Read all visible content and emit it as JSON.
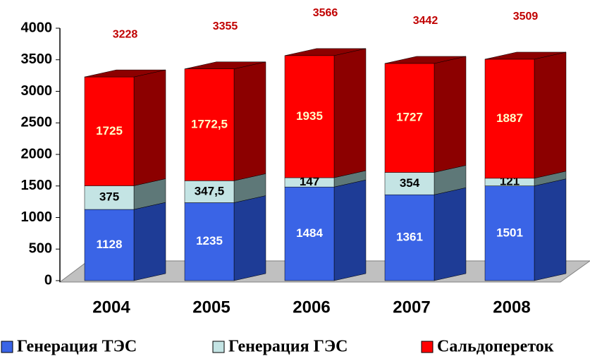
{
  "chart_data": {
    "type": "bar3d_stacked",
    "categories": [
      "2004",
      "2005",
      "2006",
      "2007",
      "2008"
    ],
    "series": [
      {
        "name": "Генерация ТЭС",
        "color": "#3a64e6",
        "side": "#1e3c96",
        "label_color": "#ffffff",
        "values": [
          1128,
          1235,
          1484,
          1361,
          1501
        ]
      },
      {
        "name": "Генерация ГЭС",
        "color": "#c4e4e4",
        "side": "#5e7878",
        "label_color": "#000000",
        "values": [
          375,
          347.5,
          147,
          354,
          121
        ],
        "value_labels": [
          "375",
          "347,5",
          "147",
          "354",
          "121"
        ]
      },
      {
        "name": "Сальдопереток",
        "color": "#ff0000",
        "side": "#8c0000",
        "label_color": "#ffffc8",
        "values": [
          1725,
          1772.5,
          1935,
          1727,
          1887
        ],
        "value_labels": [
          "1725",
          "1772,5",
          "1935",
          "1727",
          "1887"
        ]
      }
    ],
    "totals": [
      3228,
      3355,
      3566,
      3442,
      3509
    ],
    "ylim": [
      0,
      4000
    ],
    "yticks": [
      0,
      500,
      1000,
      1500,
      2000,
      2500,
      3000,
      3500,
      4000
    ]
  }
}
